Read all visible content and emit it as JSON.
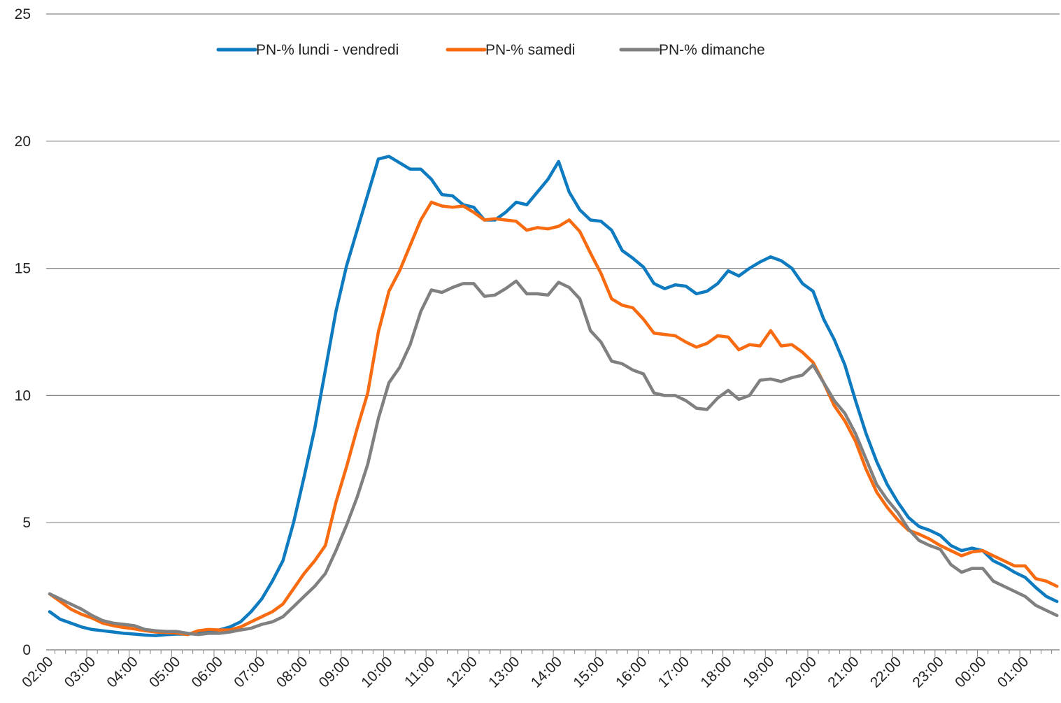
{
  "chart_data": {
    "type": "line",
    "title": "",
    "xlabel": "",
    "ylabel": "",
    "ylim": [
      0,
      25
    ],
    "yticks": [
      0,
      5,
      10,
      15,
      20,
      25
    ],
    "grid": "horizontal",
    "legend_position": "top-center",
    "x_tick_labels": [
      "02:00",
      "03:00",
      "04:00",
      "05:00",
      "06:00",
      "07:00",
      "08:00",
      "09:00",
      "10:00",
      "11:00",
      "12:00",
      "13:00",
      "14:00",
      "15:00",
      "16:00",
      "17:00",
      "18:00",
      "19:00",
      "20:00",
      "21:00",
      "22:00",
      "23:00",
      "00:00",
      "01:00"
    ],
    "x": [
      "02:00",
      "02:15",
      "02:30",
      "02:45",
      "03:00",
      "03:15",
      "03:30",
      "03:45",
      "04:00",
      "04:15",
      "04:30",
      "04:45",
      "05:00",
      "05:15",
      "05:30",
      "05:45",
      "06:00",
      "06:15",
      "06:30",
      "06:45",
      "07:00",
      "07:15",
      "07:30",
      "07:45",
      "08:00",
      "08:15",
      "08:30",
      "08:45",
      "09:00",
      "09:15",
      "09:30",
      "09:45",
      "10:00",
      "10:15",
      "10:30",
      "10:45",
      "11:00",
      "11:15",
      "11:30",
      "11:45",
      "12:00",
      "12:15",
      "12:30",
      "12:45",
      "13:00",
      "13:15",
      "13:30",
      "13:45",
      "14:00",
      "14:15",
      "14:30",
      "14:45",
      "15:00",
      "15:15",
      "15:30",
      "15:45",
      "16:00",
      "16:15",
      "16:30",
      "16:45",
      "17:00",
      "17:15",
      "17:30",
      "17:45",
      "18:00",
      "18:15",
      "18:30",
      "18:45",
      "19:00",
      "19:15",
      "19:30",
      "19:45",
      "20:00",
      "20:15",
      "20:30",
      "20:45",
      "21:00",
      "21:15",
      "21:30",
      "21:45",
      "22:00",
      "22:15",
      "22:30",
      "22:45",
      "23:00",
      "23:15",
      "23:30",
      "23:45",
      "00:00",
      "00:15",
      "00:30",
      "00:45",
      "01:00",
      "01:15",
      "01:30",
      "01:45"
    ],
    "series": [
      {
        "name": "PN-% lundi - vendredi",
        "color": "#0E7BC0",
        "values": [
          1.5,
          1.2,
          1.05,
          0.9,
          0.8,
          0.75,
          0.7,
          0.65,
          0.62,
          0.58,
          0.56,
          0.6,
          0.62,
          0.62,
          0.65,
          0.7,
          0.78,
          0.9,
          1.1,
          1.5,
          2.0,
          2.7,
          3.5,
          5.0,
          6.8,
          8.7,
          11.0,
          13.3,
          15.1,
          16.5,
          17.9,
          19.3,
          19.4,
          19.15,
          18.9,
          18.9,
          18.5,
          17.9,
          17.85,
          17.5,
          17.4,
          16.9,
          16.9,
          17.2,
          17.6,
          17.5,
          18.0,
          18.5,
          19.2,
          18.0,
          17.3,
          16.9,
          16.85,
          16.5,
          15.7,
          15.4,
          15.05,
          14.4,
          14.2,
          14.35,
          14.3,
          14.0,
          14.1,
          14.4,
          14.9,
          14.7,
          15.0,
          15.25,
          15.45,
          15.3,
          15.0,
          14.4,
          14.1,
          13.0,
          12.2,
          11.2,
          9.8,
          8.5,
          7.4,
          6.5,
          5.8,
          5.2,
          4.85,
          4.7,
          4.5,
          4.1,
          3.9,
          4.0,
          3.9,
          3.5,
          3.3,
          3.05,
          2.85,
          2.45,
          2.1,
          1.9
        ]
      },
      {
        "name": "PN-% samedi",
        "color": "#F96B10",
        "values": [
          2.2,
          1.9,
          1.6,
          1.4,
          1.25,
          1.05,
          0.95,
          0.88,
          0.82,
          0.75,
          0.7,
          0.68,
          0.66,
          0.6,
          0.75,
          0.8,
          0.78,
          0.78,
          0.9,
          1.1,
          1.3,
          1.5,
          1.8,
          2.4,
          3.0,
          3.5,
          4.1,
          5.8,
          7.2,
          8.7,
          10.1,
          12.5,
          14.1,
          14.9,
          15.9,
          16.9,
          17.6,
          17.45,
          17.4,
          17.45,
          17.2,
          16.9,
          16.95,
          16.9,
          16.85,
          16.5,
          16.6,
          16.55,
          16.65,
          16.9,
          16.45,
          15.6,
          14.8,
          13.8,
          13.55,
          13.45,
          13.0,
          12.45,
          12.4,
          12.35,
          12.1,
          11.9,
          12.05,
          12.35,
          12.3,
          11.8,
          12.0,
          11.95,
          12.55,
          11.95,
          12.0,
          11.7,
          11.3,
          10.5,
          9.6,
          9.0,
          8.2,
          7.1,
          6.2,
          5.6,
          5.1,
          4.7,
          4.55,
          4.35,
          4.1,
          3.9,
          3.7,
          3.85,
          3.9,
          3.7,
          3.5,
          3.3,
          3.3,
          2.8,
          2.7,
          2.5
        ]
      },
      {
        "name": "PN-% dimanche",
        "color": "#808080",
        "values": [
          2.2,
          2.0,
          1.8,
          1.6,
          1.35,
          1.15,
          1.05,
          1.0,
          0.95,
          0.8,
          0.75,
          0.72,
          0.72,
          0.65,
          0.6,
          0.65,
          0.65,
          0.7,
          0.78,
          0.85,
          1.0,
          1.1,
          1.3,
          1.7,
          2.1,
          2.5,
          3.0,
          3.9,
          4.9,
          6.0,
          7.3,
          9.1,
          10.5,
          11.1,
          12.0,
          13.3,
          14.15,
          14.05,
          14.25,
          14.4,
          14.4,
          13.9,
          13.95,
          14.2,
          14.5,
          14.0,
          14.0,
          13.95,
          14.45,
          14.25,
          13.8,
          12.55,
          12.1,
          11.35,
          11.25,
          11.0,
          10.85,
          10.1,
          10.0,
          10.0,
          9.8,
          9.5,
          9.45,
          9.9,
          10.2,
          9.85,
          10.0,
          10.6,
          10.65,
          10.55,
          10.7,
          10.8,
          11.2,
          10.5,
          9.8,
          9.3,
          8.5,
          7.5,
          6.5,
          5.9,
          5.4,
          4.75,
          4.3,
          4.1,
          3.95,
          3.35,
          3.05,
          3.2,
          3.2,
          2.7,
          2.5,
          2.3,
          2.1,
          1.75,
          1.55,
          1.35
        ]
      }
    ]
  }
}
